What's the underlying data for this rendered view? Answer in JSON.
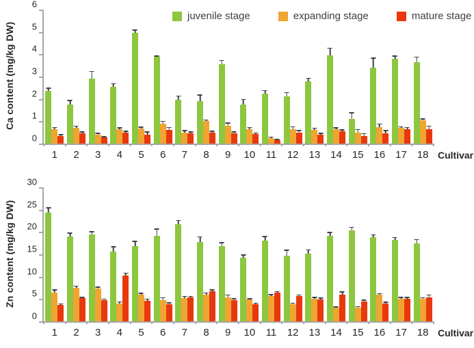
{
  "legend": {
    "items": [
      {
        "label": "juvenile stage",
        "color": "#8DC63F"
      },
      {
        "label": "expanding stage",
        "color": "#F0A432"
      },
      {
        "label": "mature stage",
        "color": "#E8380D"
      }
    ]
  },
  "colors": {
    "juvenile": "#8DC63F",
    "expanding": "#F0A432",
    "mature": "#E8380D",
    "axis": "#A6A6A6",
    "error_bar": "#3F3F46"
  },
  "chart_data": [
    {
      "type": "bar",
      "title": "",
      "ylabel": "Ca content (mg/kg DW)",
      "xlabel": "Cultivar",
      "ylim": [
        0,
        6
      ],
      "yticks": [
        0,
        1,
        2,
        3,
        4,
        5,
        6
      ],
      "grid": false,
      "legend_position": "top",
      "categories": [
        "1",
        "2",
        "3",
        "4",
        "5",
        "6",
        "7",
        "8",
        "9",
        "10",
        "11",
        "12",
        "13",
        "14",
        "15",
        "16",
        "17",
        "18"
      ],
      "series": [
        {
          "name": "juvenile stage",
          "color": "#8DC63F",
          "values": [
            2.35,
            1.75,
            2.9,
            2.55,
            4.95,
            3.9,
            1.95,
            1.9,
            3.55,
            1.75,
            2.25,
            2.1,
            2.8,
            3.95,
            1.1,
            3.4,
            3.8,
            3.65
          ],
          "errors": [
            0.15,
            0.2,
            0.35,
            0.15,
            0.15,
            0.05,
            0.2,
            0.3,
            0.2,
            0.25,
            0.15,
            0.2,
            0.15,
            0.35,
            0.3,
            0.45,
            0.15,
            0.25
          ]
        },
        {
          "name": "expanding stage",
          "color": "#F0A432",
          "values": [
            0.65,
            0.7,
            0.4,
            0.65,
            0.68,
            0.9,
            0.5,
            1.0,
            0.8,
            0.65,
            0.25,
            0.65,
            0.6,
            0.65,
            0.5,
            0.75,
            0.7,
            1.05
          ],
          "errors": [
            0.1,
            0.1,
            0.08,
            0.08,
            0.08,
            0.12,
            0.1,
            0.08,
            0.15,
            0.1,
            0.06,
            0.12,
            0.12,
            0.08,
            0.15,
            0.15,
            0.08,
            0.08
          ]
        },
        {
          "name": "mature stage",
          "color": "#E8380D",
          "values": [
            0.35,
            0.45,
            0.28,
            0.5,
            0.4,
            0.6,
            0.45,
            0.5,
            0.45,
            0.42,
            0.15,
            0.5,
            0.4,
            0.55,
            0.35,
            0.45,
            0.65,
            0.65
          ],
          "errors": [
            0.08,
            0.1,
            0.05,
            0.08,
            0.15,
            0.15,
            0.1,
            0.08,
            0.1,
            0.08,
            0.05,
            0.1,
            0.08,
            0.08,
            0.12,
            0.15,
            0.1,
            0.15
          ]
        }
      ]
    },
    {
      "type": "bar",
      "title": "",
      "ylabel": "Zn content (mg/kg DW)",
      "xlabel": "Cultivar",
      "ylim": [
        0,
        30
      ],
      "yticks": [
        0,
        5,
        10,
        15,
        20,
        25,
        30
      ],
      "grid": false,
      "legend_position": "none",
      "categories": [
        "1",
        "2",
        "3",
        "4",
        "5",
        "6",
        "7",
        "8",
        "9",
        "10",
        "11",
        "12",
        "13",
        "14",
        "15",
        "16",
        "17",
        "18"
      ],
      "series": [
        {
          "name": "juvenile stage",
          "color": "#8DC63F",
          "values": [
            24.3,
            19.0,
            19.4,
            15.6,
            16.9,
            19.1,
            21.8,
            17.8,
            16.8,
            14.2,
            18.1,
            14.7,
            15.2,
            19.1,
            20.3,
            18.8,
            18.2,
            17.4
          ],
          "errors": [
            1.2,
            0.9,
            0.8,
            1.2,
            1.1,
            1.7,
            0.9,
            1.2,
            0.9,
            0.8,
            1.0,
            1.3,
            0.9,
            0.9,
            0.9,
            0.7,
            0.7,
            1.0
          ]
        },
        {
          "name": "expanding stage",
          "color": "#F0A432",
          "values": [
            6.5,
            7.5,
            7.3,
            4.0,
            5.9,
            4.7,
            5.2,
            6.0,
            5.4,
            4.9,
            5.6,
            3.8,
            5.1,
            3.0,
            3.1,
            6.0,
            5.0,
            5.0
          ],
          "errors": [
            0.7,
            0.5,
            0.5,
            0.5,
            0.5,
            0.7,
            0.5,
            0.5,
            0.6,
            0.3,
            0.5,
            0.4,
            0.4,
            0.3,
            0.3,
            0.3,
            0.5,
            0.4
          ]
        },
        {
          "name": "mature stage",
          "color": "#E8380D",
          "values": [
            3.6,
            5.2,
            4.8,
            10.2,
            4.6,
            3.9,
            5.3,
            6.8,
            4.7,
            3.9,
            6.4,
            5.6,
            4.9,
            5.9,
            4.5,
            4.0,
            5.0,
            5.4
          ],
          "errors": [
            0.4,
            0.3,
            0.3,
            0.7,
            0.5,
            0.4,
            0.4,
            0.4,
            0.5,
            0.3,
            0.4,
            0.4,
            0.4,
            0.8,
            0.4,
            0.4,
            0.5,
            0.6
          ]
        }
      ]
    }
  ]
}
